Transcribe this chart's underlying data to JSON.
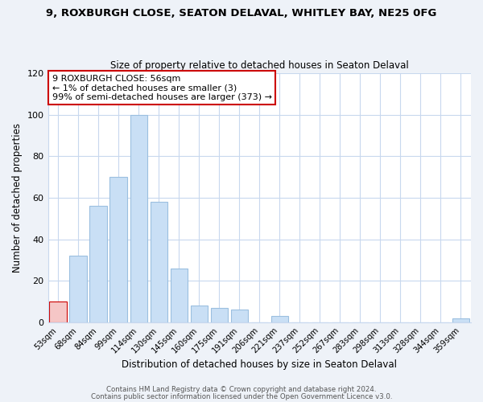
{
  "title": "9, ROXBURGH CLOSE, SEATON DELAVAL, WHITLEY BAY, NE25 0FG",
  "subtitle": "Size of property relative to detached houses in Seaton Delaval",
  "xlabel": "Distribution of detached houses by size in Seaton Delaval",
  "ylabel": "Number of detached properties",
  "bar_labels": [
    "53sqm",
    "68sqm",
    "84sqm",
    "99sqm",
    "114sqm",
    "130sqm",
    "145sqm",
    "160sqm",
    "175sqm",
    "191sqm",
    "206sqm",
    "221sqm",
    "237sqm",
    "252sqm",
    "267sqm",
    "283sqm",
    "298sqm",
    "313sqm",
    "328sqm",
    "344sqm",
    "359sqm"
  ],
  "bar_values": [
    10,
    32,
    56,
    70,
    100,
    58,
    26,
    8,
    7,
    6,
    0,
    3,
    0,
    0,
    0,
    0,
    0,
    0,
    0,
    0,
    2
  ],
  "highlight_index": 0,
  "highlight_color": "#f5c6c6",
  "highlight_edge_color": "#cc0000",
  "normal_color": "#c9dff5",
  "normal_edge_color": "#9bbfe0",
  "ylim": [
    0,
    120
  ],
  "yticks": [
    0,
    20,
    40,
    60,
    80,
    100,
    120
  ],
  "annotation_text": "9 ROXBURGH CLOSE: 56sqm\n← 1% of detached houses are smaller (3)\n99% of semi-detached houses are larger (373) →",
  "annotation_box_edge": "#cc0000",
  "footer1": "Contains HM Land Registry data © Crown copyright and database right 2024.",
  "footer2": "Contains public sector information licensed under the Open Government Licence v3.0.",
  "bg_color": "#eef2f8",
  "plot_bg_color": "#ffffff",
  "grid_color": "#c8d8ee",
  "title_fontsize": 9.5,
  "subtitle_fontsize": 8.5
}
